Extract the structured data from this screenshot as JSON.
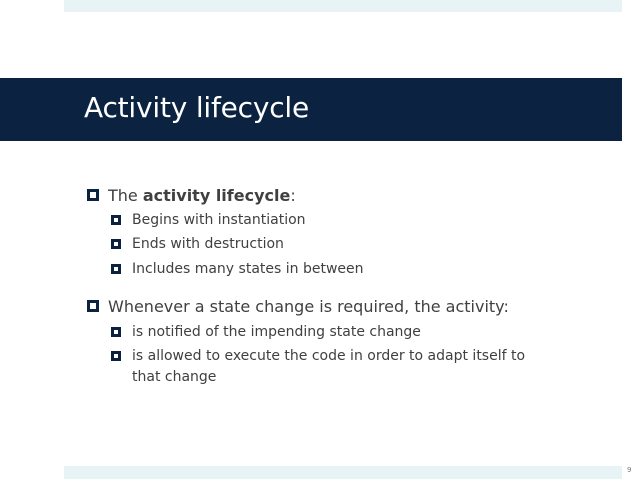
{
  "slide": {
    "title": "Activity lifecycle",
    "page_number": "9",
    "bullets": [
      {
        "prefix": "The ",
        "bold": "activity lifecycle",
        "suffix": ":",
        "sub": [
          "Begins with instantiation",
          "Ends with destruction",
          "Includes many states in between"
        ]
      },
      {
        "text": "Whenever a state change is required, the activity:",
        "sub": [
          "is notified of the impending state change",
          "is allowed to execute the code in order to adapt itself to",
          "that change"
        ]
      }
    ]
  },
  "colors": {
    "title_bar": "#0b2340",
    "band": "#e8f3f5",
    "text": "#404040"
  }
}
